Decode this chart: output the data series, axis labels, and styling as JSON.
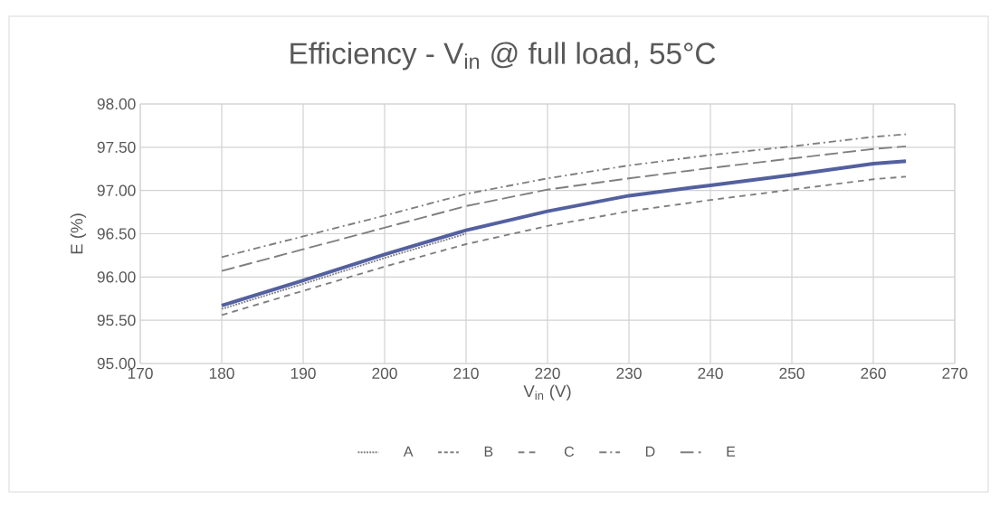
{
  "chart_data": {
    "type": "line",
    "title": "Efficiency - V$_{in}$ @ full load, 55°C",
    "xlabel": "V$_{in}$ (V)",
    "ylabel": "E (%)",
    "x": [
      180,
      190,
      200,
      210,
      220,
      230,
      240,
      250,
      260,
      264
    ],
    "series": [
      {
        "name": "A",
        "color": "#7f7f7f",
        "line_style": "dotted",
        "values": [
          95.63,
          95.92,
          96.22,
          96.5,
          null,
          null,
          null,
          null,
          null,
          null
        ]
      },
      {
        "name": "B",
        "color": "#7f7f7f",
        "line_style": "dashed",
        "values": [
          null,
          null,
          null,
          null,
          null,
          null,
          null,
          null,
          null,
          null
        ]
      },
      {
        "color": "#5360a0",
        "line_style": "solid",
        "values": [
          95.67,
          95.96,
          96.26,
          96.54,
          96.76,
          96.94,
          97.06,
          97.18,
          97.31,
          97.34
        ]
      },
      {
        "name": "C",
        "color": "#7f7f7f",
        "line_style": "loosely dashed",
        "values": [
          95.56,
          95.84,
          96.12,
          96.38,
          96.59,
          96.76,
          96.89,
          97.01,
          97.13,
          97.16
        ]
      },
      {
        "name": "D",
        "color": "#7f7f7f",
        "line_style": "dash dot",
        "values": [
          96.23,
          96.47,
          96.71,
          96.96,
          97.14,
          97.29,
          97.41,
          97.51,
          97.62,
          97.65
        ]
      },
      {
        "name": "E",
        "color": "#7f7f7f",
        "line_style": "long dashed",
        "values": [
          96.07,
          96.32,
          96.57,
          96.82,
          97.01,
          97.14,
          97.26,
          97.37,
          97.48,
          97.51
        ]
      }
    ],
    "xlim": [
      170,
      270
    ],
    "xticks": [
      170,
      180,
      190,
      200,
      210,
      220,
      230,
      240,
      250,
      260,
      270
    ],
    "ylim": [
      95,
      98
    ],
    "yticks": [
      {
        "value": 95,
        "label": "95.00"
      },
      {
        "value": 95.5,
        "label": "95.50"
      },
      {
        "value": 96,
        "label": "96.00"
      },
      {
        "value": 96.5,
        "label": "96.50"
      },
      {
        "value": 97,
        "label": "97.00"
      },
      {
        "value": 97.5,
        "label": "97.50"
      },
      {
        "value": 98,
        "label": "98.00"
      }
    ],
    "grid": true,
    "legend": "bottom",
    "marker": "none"
  }
}
